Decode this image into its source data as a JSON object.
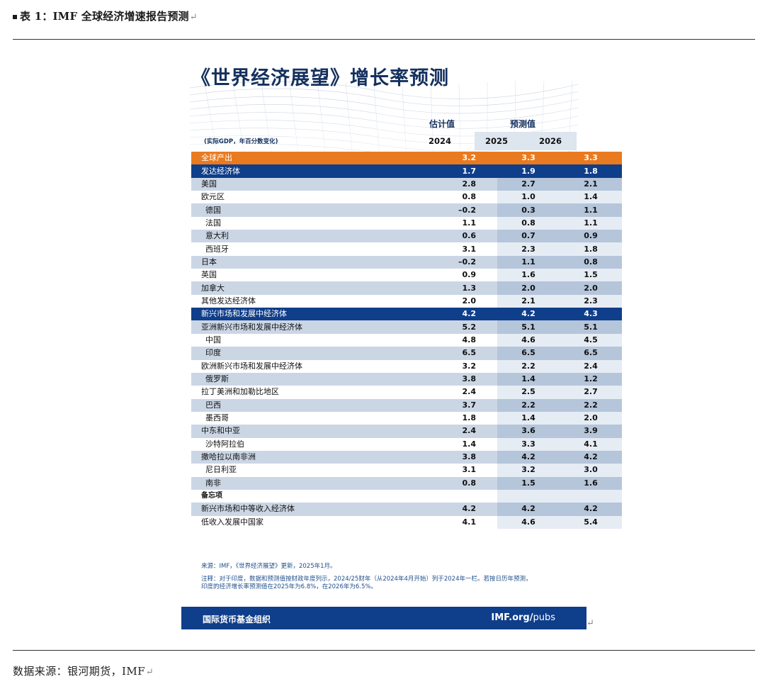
{
  "caption": "表 1：IMF 全球经济增速报告预测",
  "source": "数据来源：银河期货，IMF",
  "card": {
    "title": "《世界经济展望》增长率预测",
    "estimate_header": "估计值",
    "forecast_header": "预测值",
    "units": "(实际GDP，年百分数变化)",
    "years": [
      "2024",
      "2025",
      "2026"
    ]
  },
  "rows": [
    {
      "label": "全球产出",
      "v": [
        "3.2",
        "3.3",
        "3.3"
      ],
      "style": "orange"
    },
    {
      "label": "发达经济体",
      "v": [
        "1.7",
        "1.9",
        "1.8"
      ],
      "style": "navy"
    },
    {
      "label": "美国",
      "v": [
        "2.8",
        "2.7",
        "2.1"
      ],
      "style": "sh"
    },
    {
      "label": "欧元区",
      "v": [
        "0.8",
        "1.0",
        "1.4"
      ],
      "style": "pl"
    },
    {
      "label": "德国",
      "v": [
        "–0.2",
        "0.3",
        "1.1"
      ],
      "style": "sh",
      "indent": true
    },
    {
      "label": "法国",
      "v": [
        "1.1",
        "0.8",
        "1.1"
      ],
      "style": "pl",
      "indent": true
    },
    {
      "label": "意大利",
      "v": [
        "0.6",
        "0.7",
        "0.9"
      ],
      "style": "sh",
      "indent": true
    },
    {
      "label": "西班牙",
      "v": [
        "3.1",
        "2.3",
        "1.8"
      ],
      "style": "pl",
      "indent": true
    },
    {
      "label": "日本",
      "v": [
        "–0.2",
        "1.1",
        "0.8"
      ],
      "style": "sh"
    },
    {
      "label": "英国",
      "v": [
        "0.9",
        "1.6",
        "1.5"
      ],
      "style": "pl"
    },
    {
      "label": "加拿大",
      "v": [
        "1.3",
        "2.0",
        "2.0"
      ],
      "style": "sh"
    },
    {
      "label": "其他发达经济体",
      "v": [
        "2.0",
        "2.1",
        "2.3"
      ],
      "style": "pl"
    },
    {
      "label": "新兴市场和发展中经济体",
      "v": [
        "4.2",
        "4.2",
        "4.3"
      ],
      "style": "navy"
    },
    {
      "label": "亚洲新兴市场和发展中经济体",
      "v": [
        "5.2",
        "5.1",
        "5.1"
      ],
      "style": "sh"
    },
    {
      "label": "中国",
      "v": [
        "4.8",
        "4.6",
        "4.5"
      ],
      "style": "pl",
      "indent": true
    },
    {
      "label": "印度",
      "v": [
        "6.5",
        "6.5",
        "6.5"
      ],
      "style": "sh",
      "indent": true
    },
    {
      "label": "欧洲新兴市场和发展中经济体",
      "v": [
        "3.2",
        "2.2",
        "2.4"
      ],
      "style": "pl"
    },
    {
      "label": "俄罗斯",
      "v": [
        "3.8",
        "1.4",
        "1.2"
      ],
      "style": "sh",
      "indent": true
    },
    {
      "label": "拉丁美洲和加勒比地区",
      "v": [
        "2.4",
        "2.5",
        "2.7"
      ],
      "style": "pl"
    },
    {
      "label": "巴西",
      "v": [
        "3.7",
        "2.2",
        "2.2"
      ],
      "style": "sh",
      "indent": true
    },
    {
      "label": "墨西哥",
      "v": [
        "1.8",
        "1.4",
        "2.0"
      ],
      "style": "pl",
      "indent": true
    },
    {
      "label": "中东和中亚",
      "v": [
        "2.4",
        "3.6",
        "3.9"
      ],
      "style": "sh"
    },
    {
      "label": "沙特阿拉伯",
      "v": [
        "1.4",
        "3.3",
        "4.1"
      ],
      "style": "pl",
      "indent": true
    },
    {
      "label": "撒哈拉以南非洲",
      "v": [
        "3.8",
        "4.2",
        "4.2"
      ],
      "style": "sh"
    },
    {
      "label": "尼日利亚",
      "v": [
        "3.1",
        "3.2",
        "3.0"
      ],
      "style": "pl",
      "indent": true
    },
    {
      "label": "南非",
      "v": [
        "0.8",
        "1.5",
        "1.6"
      ],
      "style": "sh",
      "indent": true
    },
    {
      "label": "备忘项",
      "v": [
        "",
        "",
        ""
      ],
      "style": "pl memo"
    },
    {
      "label": "新兴市场和中等收入经济体",
      "v": [
        "4.2",
        "4.2",
        "4.2"
      ],
      "style": "sh"
    },
    {
      "label": "低收入发展中国家",
      "v": [
        "4.1",
        "4.6",
        "5.4"
      ],
      "style": "pl"
    }
  ],
  "notes": {
    "source_note": "来源：IMF，《世界经济展望》更新，2025年1月。",
    "note_line1": "注释：对于印度，数据和预测值按财政年度列示，2024/25财年（从2024年4月开始）列于2024年一栏。若按日历年预测，",
    "note_line2": "印度的经济增长率预测值在2025年为6.8%，在2026年为6.5%。"
  },
  "footer": {
    "org": "国际货币基金组织",
    "url_main": "IMF.org/",
    "url_pubs": "pubs"
  },
  "colors": {
    "navy": "#0f3e8a",
    "orange": "#ea7a1f",
    "title": "#14305e"
  }
}
